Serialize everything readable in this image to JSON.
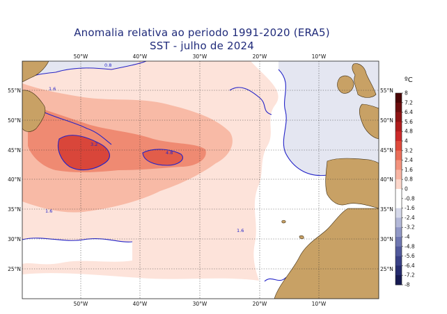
{
  "title_line1": "Anomalia relativa ao periodo 1991-2020 (ERA5)",
  "title_line2": "SST - julho de 2024",
  "longitude_labels_top": [
    "50°W",
    "40°W",
    "30°W",
    "20°W",
    "10°W"
  ],
  "longitude_labels_bottom": [
    "50°W",
    "40°W",
    "30°W",
    "20°W",
    "10°W"
  ],
  "latitude_labels_left": [
    "55°N",
    "50°N",
    "45°N",
    "40°N",
    "35°N",
    "30°N",
    "25°N"
  ],
  "latitude_labels_right": [
    "55°N",
    "50°N",
    "45°N",
    "40°N",
    "35°N",
    "30°N",
    "25°N"
  ],
  "colorbar": {
    "unit": "ºC",
    "labels": [
      "8",
      "7.2",
      "6.4",
      "5.6",
      "4.8",
      "4",
      "3.2",
      "2.4",
      "1.6",
      "0.8",
      "0",
      "-0.8",
      "-1.6",
      "-2.4",
      "-3.2",
      "-4",
      "-4.8",
      "-5.6",
      "-6.4",
      "-7.2",
      "-8"
    ],
    "colors": [
      "#4a0606",
      "#6b0d0d",
      "#8e1414",
      "#b01d1d",
      "#cc2a2a",
      "#df4a3b",
      "#ea6e59",
      "#f3937d",
      "#f8b5a3",
      "#fcd7cb",
      "#ffffff",
      "#ffffff",
      "#d6d9ea",
      "#b3b8d8",
      "#9198c6",
      "#6f77b1",
      "#525a9c",
      "#3a4186",
      "#262c6e",
      "#161a52",
      "#060606"
    ]
  },
  "contour_labels": [
    "1.6",
    "3.2",
    "4.8",
    "0.8"
  ],
  "colors": {
    "land": "#c8a165",
    "title": "#1f2a7a",
    "contour": "#2323c8"
  }
}
